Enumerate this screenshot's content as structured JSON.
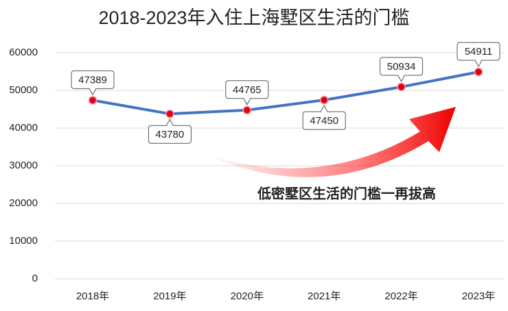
{
  "chart_data": {
    "type": "line",
    "title": "2018-2023年入住上海墅区生活的门槛",
    "categories": [
      "2018年",
      "2019年",
      "2020年",
      "2021年",
      "2022年",
      "2023年"
    ],
    "values": [
      47389,
      43780,
      44765,
      47450,
      50934,
      54911
    ],
    "color": "#4472c4",
    "marker_color": "#e3001b",
    "ylim": [
      0,
      60000
    ],
    "yticks": [
      0,
      10000,
      20000,
      30000,
      40000,
      50000,
      60000
    ],
    "grid": true,
    "annotation": "低密墅区生活的门槛一再拔高"
  }
}
